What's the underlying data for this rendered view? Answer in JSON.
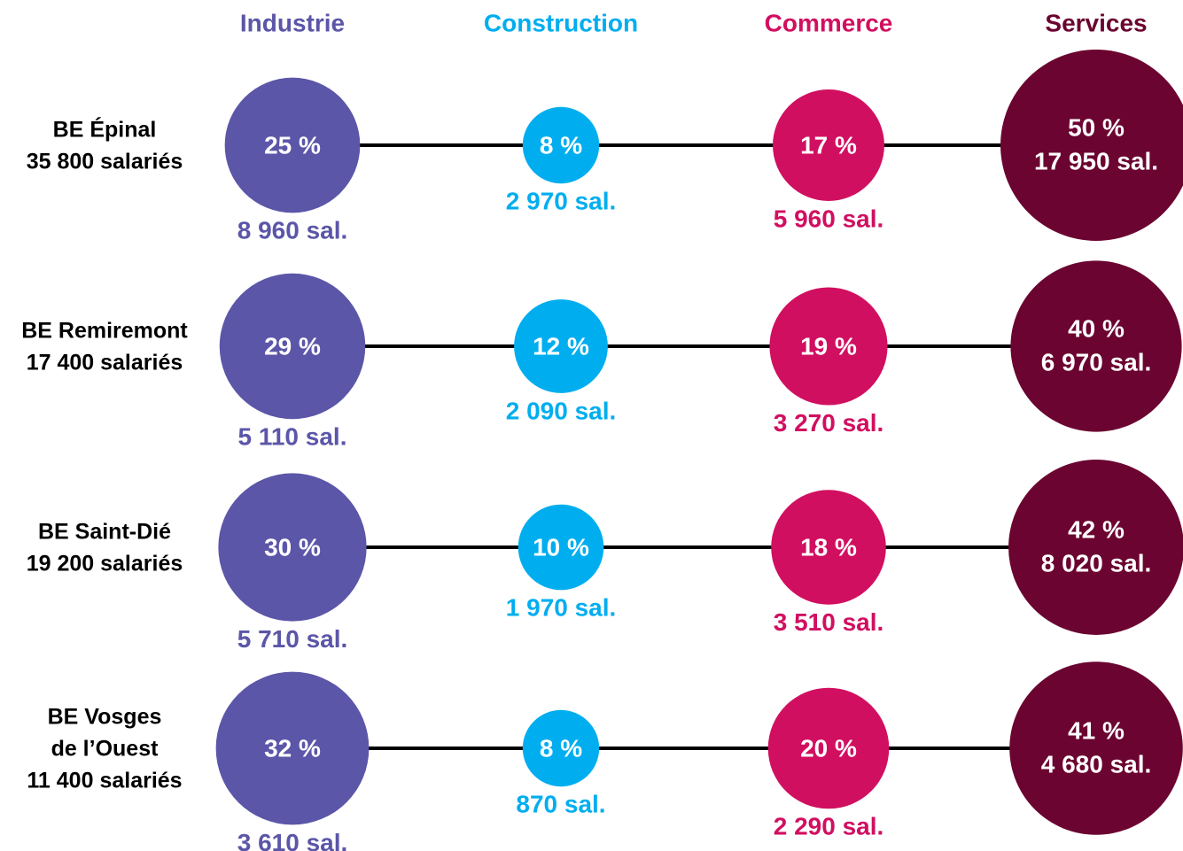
{
  "chart_data": {
    "type": "bubble_matrix",
    "rows": [
      [
        "BE Épinal",
        "35 800 salariés"
      ],
      [
        "BE Remiremont",
        "17 400 salariés"
      ],
      [
        "BE Saint-Dié",
        "19 200 salariés"
      ],
      [
        "BE Vosges",
        "de l’Ouest",
        "11 400 salariés"
      ]
    ],
    "series": [
      {
        "name": "Industrie",
        "color": "#5b56a8",
        "values": [
          25,
          29,
          30,
          32
        ],
        "value_labels": [
          "25 %",
          "29 %",
          "30 %",
          "32 %"
        ],
        "employees": [
          8960,
          5110,
          5710,
          3610
        ],
        "employee_labels": [
          "8 960 sal.",
          "5 110 sal.",
          "5 710 sal.",
          "3 610 sal."
        ]
      },
      {
        "name": "Construction",
        "color": "#00aeef",
        "values": [
          8,
          12,
          10,
          8
        ],
        "value_labels": [
          "8 %",
          "12 %",
          "10 %",
          "8 %"
        ],
        "employees": [
          2970,
          2090,
          1970,
          870
        ],
        "employee_labels": [
          "2 970 sal.",
          "2 090 sal.",
          "1 970 sal.",
          "870 sal."
        ]
      },
      {
        "name": "Commerce",
        "color": "#d10f60",
        "values": [
          17,
          19,
          18,
          20
        ],
        "value_labels": [
          "17 %",
          "19 %",
          "18 %",
          "20 %"
        ],
        "employees": [
          5960,
          3270,
          3510,
          2290
        ],
        "employee_labels": [
          "5 960 sal.",
          "3 270 sal.",
          "3 510 sal.",
          "2 290 sal."
        ]
      },
      {
        "name": "Services",
        "color": "#6b0430",
        "values": [
          50,
          40,
          42,
          41
        ],
        "value_labels": [
          "50 %",
          "40 %",
          "42 %",
          "41 %"
        ],
        "employees": [
          17950,
          6970,
          8020,
          4680
        ],
        "employee_labels": [
          "17 950 sal.",
          "6 970 sal.",
          "8 020 sal.",
          "4 680 sal."
        ]
      }
    ]
  }
}
